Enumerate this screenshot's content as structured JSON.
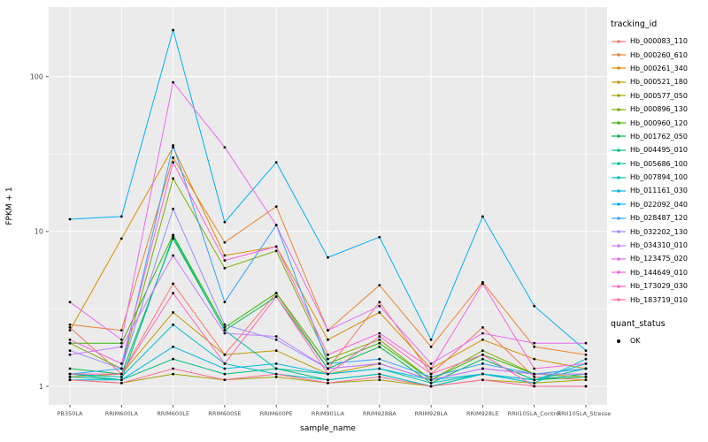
{
  "chart": {
    "panel_bg": "#EBEBEB",
    "grid_color": "#FFFFFF",
    "tick_color": "#333333",
    "tick_label_color": "#4D4D4D",
    "point_color": "#000000"
  },
  "chart_data": {
    "type": "line",
    "title": "",
    "xlabel": "sample_name",
    "ylabel": "FPKM + 1",
    "y_scale": "log10",
    "ylim": [
      1,
      230
    ],
    "y_ticks_major": [
      1,
      10,
      100
    ],
    "y_tick_labels": [
      "1",
      "10",
      "100"
    ],
    "y_ticks_minor": [
      3.1623,
      31.6228
    ],
    "grid": true,
    "legend_position": "right",
    "legend_title": "tracking_id",
    "quant_legend_title": "quant_status",
    "quant_legend_items": [
      "OK"
    ],
    "categories": [
      "PB350LA",
      "RRIM600LA",
      "RRIM600LE",
      "RRIM600SE",
      "RRIM600PE",
      "RRIM901LA",
      "RRIM928BA",
      "RRIM928LA",
      "RRIM928LE",
      "RRII105LA_Control",
      "RRII105LA_Stressed"
    ],
    "series": [
      {
        "name": "Hb_000083_110",
        "color": "#F8766D",
        "values": [
          2.4,
          1.2,
          4.6,
          1.6,
          4.0,
          1.3,
          3.5,
          1.2,
          2.4,
          1.15,
          1.1
        ]
      },
      {
        "name": "Hb_000260_610",
        "color": "#EA8331",
        "values": [
          2.5,
          2.3,
          30,
          8.5,
          14.5,
          2.3,
          4.5,
          1.8,
          4.7,
          1.8,
          1.6
        ]
      },
      {
        "name": "Hb_000261_340",
        "color": "#D89000",
        "values": [
          2.3,
          9.0,
          35,
          7.0,
          8.0,
          2.0,
          3.0,
          1.3,
          2.0,
          1.5,
          1.3
        ]
      },
      {
        "name": "Hb_000521_180",
        "color": "#C09B00",
        "values": [
          1.15,
          1.2,
          3.0,
          1.6,
          1.7,
          1.2,
          1.4,
          1.1,
          1.3,
          1.2,
          1.15
        ]
      },
      {
        "name": "Hb_000577_050",
        "color": "#A3A500",
        "values": [
          1.1,
          1.05,
          1.2,
          1.1,
          1.15,
          1.05,
          1.1,
          1.0,
          1.1,
          1.05,
          1.1
        ]
      },
      {
        "name": "Hb_000896_130",
        "color": "#7CAE00",
        "values": [
          1.9,
          1.3,
          22,
          5.8,
          7.5,
          1.5,
          2.0,
          1.1,
          1.7,
          1.2,
          1.3
        ]
      },
      {
        "name": "Hb_000960_120",
        "color": "#39B600",
        "values": [
          1.9,
          1.9,
          9.5,
          2.4,
          4.0,
          1.4,
          1.9,
          1.1,
          1.6,
          1.2,
          1.2
        ]
      },
      {
        "name": "Hb_001762_050",
        "color": "#00BB4E",
        "values": [
          1.3,
          1.2,
          9.0,
          2.3,
          3.8,
          1.3,
          1.8,
          1.05,
          1.5,
          1.1,
          1.15
        ]
      },
      {
        "name": "Hb_004495_010",
        "color": "#00BF7D",
        "values": [
          1.2,
          1.1,
          1.5,
          1.2,
          1.3,
          1.1,
          1.2,
          1.0,
          1.2,
          1.1,
          1.2
        ]
      },
      {
        "name": "Hb_005686_100",
        "color": "#00C1A3",
        "values": [
          1.15,
          1.1,
          9.3,
          2.3,
          1.3,
          1.2,
          1.3,
          1.05,
          1.2,
          1.1,
          1.3
        ]
      },
      {
        "name": "Hb_007894_100",
        "color": "#00BFC4",
        "values": [
          1.2,
          1.15,
          2.5,
          1.4,
          1.2,
          1.1,
          1.2,
          1.0,
          1.2,
          1.05,
          1.5
        ]
      },
      {
        "name": "Hb_011161_030",
        "color": "#00BAE0",
        "values": [
          1.1,
          1.1,
          1.8,
          1.3,
          1.4,
          1.2,
          1.3,
          1.1,
          1.2,
          1.1,
          1.4
        ]
      },
      {
        "name": "Hb_022092_040",
        "color": "#00B0F6",
        "values": [
          12,
          12.5,
          200,
          11.5,
          28,
          6.8,
          9.2,
          2.0,
          12.5,
          3.3,
          1.7
        ]
      },
      {
        "name": "Hb_028487_120",
        "color": "#35A2FF",
        "values": [
          1.2,
          1.3,
          36,
          3.5,
          11,
          1.4,
          1.5,
          1.15,
          1.4,
          1.2,
          1.3
        ]
      },
      {
        "name": "Hb_032202_130",
        "color": "#9590FF",
        "values": [
          1.7,
          1.3,
          14,
          2.5,
          2.0,
          1.3,
          1.4,
          1.1,
          1.3,
          1.2,
          1.2
        ]
      },
      {
        "name": "Hb_034310_010",
        "color": "#C77CFF",
        "values": [
          1.6,
          1.8,
          7.0,
          2.2,
          2.1,
          1.3,
          1.4,
          1.1,
          1.3,
          1.2,
          1.2
        ]
      },
      {
        "name": "Hb_123475_020",
        "color": "#E76BF3",
        "values": [
          3.5,
          2.0,
          92,
          35,
          11,
          2.3,
          3.3,
          1.4,
          2.2,
          1.9,
          1.9
        ]
      },
      {
        "name": "Hb_144649_010",
        "color": "#FA62DB",
        "values": [
          2.0,
          1.4,
          28,
          6.5,
          8.0,
          1.6,
          2.2,
          1.3,
          4.6,
          1.3,
          1.4
        ]
      },
      {
        "name": "Hb_173029_030",
        "color": "#FF62BC",
        "values": [
          1.2,
          1.2,
          4.0,
          1.4,
          3.8,
          1.2,
          2.1,
          1.2,
          1.6,
          1.0,
          1.0
        ]
      },
      {
        "name": "Hb_183719_010",
        "color": "#FF6A98",
        "values": [
          1.1,
          1.05,
          1.3,
          1.1,
          1.2,
          1.05,
          1.15,
          1.0,
          1.1,
          1.0,
          1.0
        ]
      }
    ]
  }
}
